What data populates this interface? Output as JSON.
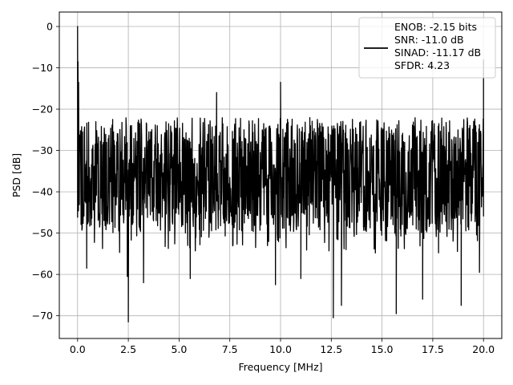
{
  "chart_data": {
    "type": "line",
    "title": "",
    "xlabel": "Frequency [MHz]",
    "ylabel": "PSD [dB]",
    "xlim": [
      -0.9,
      20.9
    ],
    "ylim": [
      -75.5,
      3.5
    ],
    "xticks": [
      0.0,
      2.5,
      5.0,
      7.5,
      10.0,
      12.5,
      15.0,
      17.5,
      20.0
    ],
    "xtick_labels": [
      "0.0",
      "2.5",
      "5.0",
      "7.5",
      "10.0",
      "12.5",
      "15.0",
      "17.5",
      "20.0"
    ],
    "yticks": [
      0,
      -10,
      -20,
      -30,
      -40,
      -50,
      -60,
      -70
    ],
    "ytick_labels": [
      "0",
      "−10",
      "−20",
      "−30",
      "−40",
      "−50",
      "−60",
      "−70"
    ],
    "grid": true,
    "legend_position": "top-right",
    "line_color": "#000000",
    "series": [
      {
        "name": "ENOB: -2.15 bits\nSNR: -11.0 dB\nSINAD: -11.17 dB\nSFDR: 4.23",
        "legend_lines": [
          "ENOB: -2.15 bits",
          "SNR: -11.0 dB",
          "SINAD: -11.17 dB",
          "SFDR: 4.23"
        ],
        "x_range": [
          0.0,
          20.0
        ],
        "noise_band_top": -25,
        "noise_band_bottom": -47,
        "peaks": [
          {
            "x": 0.0,
            "y": 0.0
          },
          {
            "x": 0.02,
            "y": -8.5
          },
          {
            "x": 0.05,
            "y": -13.5
          },
          {
            "x": 6.85,
            "y": -16.0
          },
          {
            "x": 10.0,
            "y": -13.5
          },
          {
            "x": 20.0,
            "y": -8.0
          }
        ],
        "dips": [
          {
            "x": 0.45,
            "y": -58.5
          },
          {
            "x": 2.5,
            "y": -71.5
          },
          {
            "x": 2.45,
            "y": -60.5
          },
          {
            "x": 3.25,
            "y": -62.0
          },
          {
            "x": 5.55,
            "y": -61.0
          },
          {
            "x": 9.75,
            "y": -62.5
          },
          {
            "x": 11.0,
            "y": -61.0
          },
          {
            "x": 12.6,
            "y": -70.5
          },
          {
            "x": 13.0,
            "y": -67.5
          },
          {
            "x": 15.7,
            "y": -69.5
          },
          {
            "x": 17.0,
            "y": -66.0
          },
          {
            "x": 18.9,
            "y": -67.5
          },
          {
            "x": 19.8,
            "y": -59.5
          }
        ]
      }
    ]
  }
}
